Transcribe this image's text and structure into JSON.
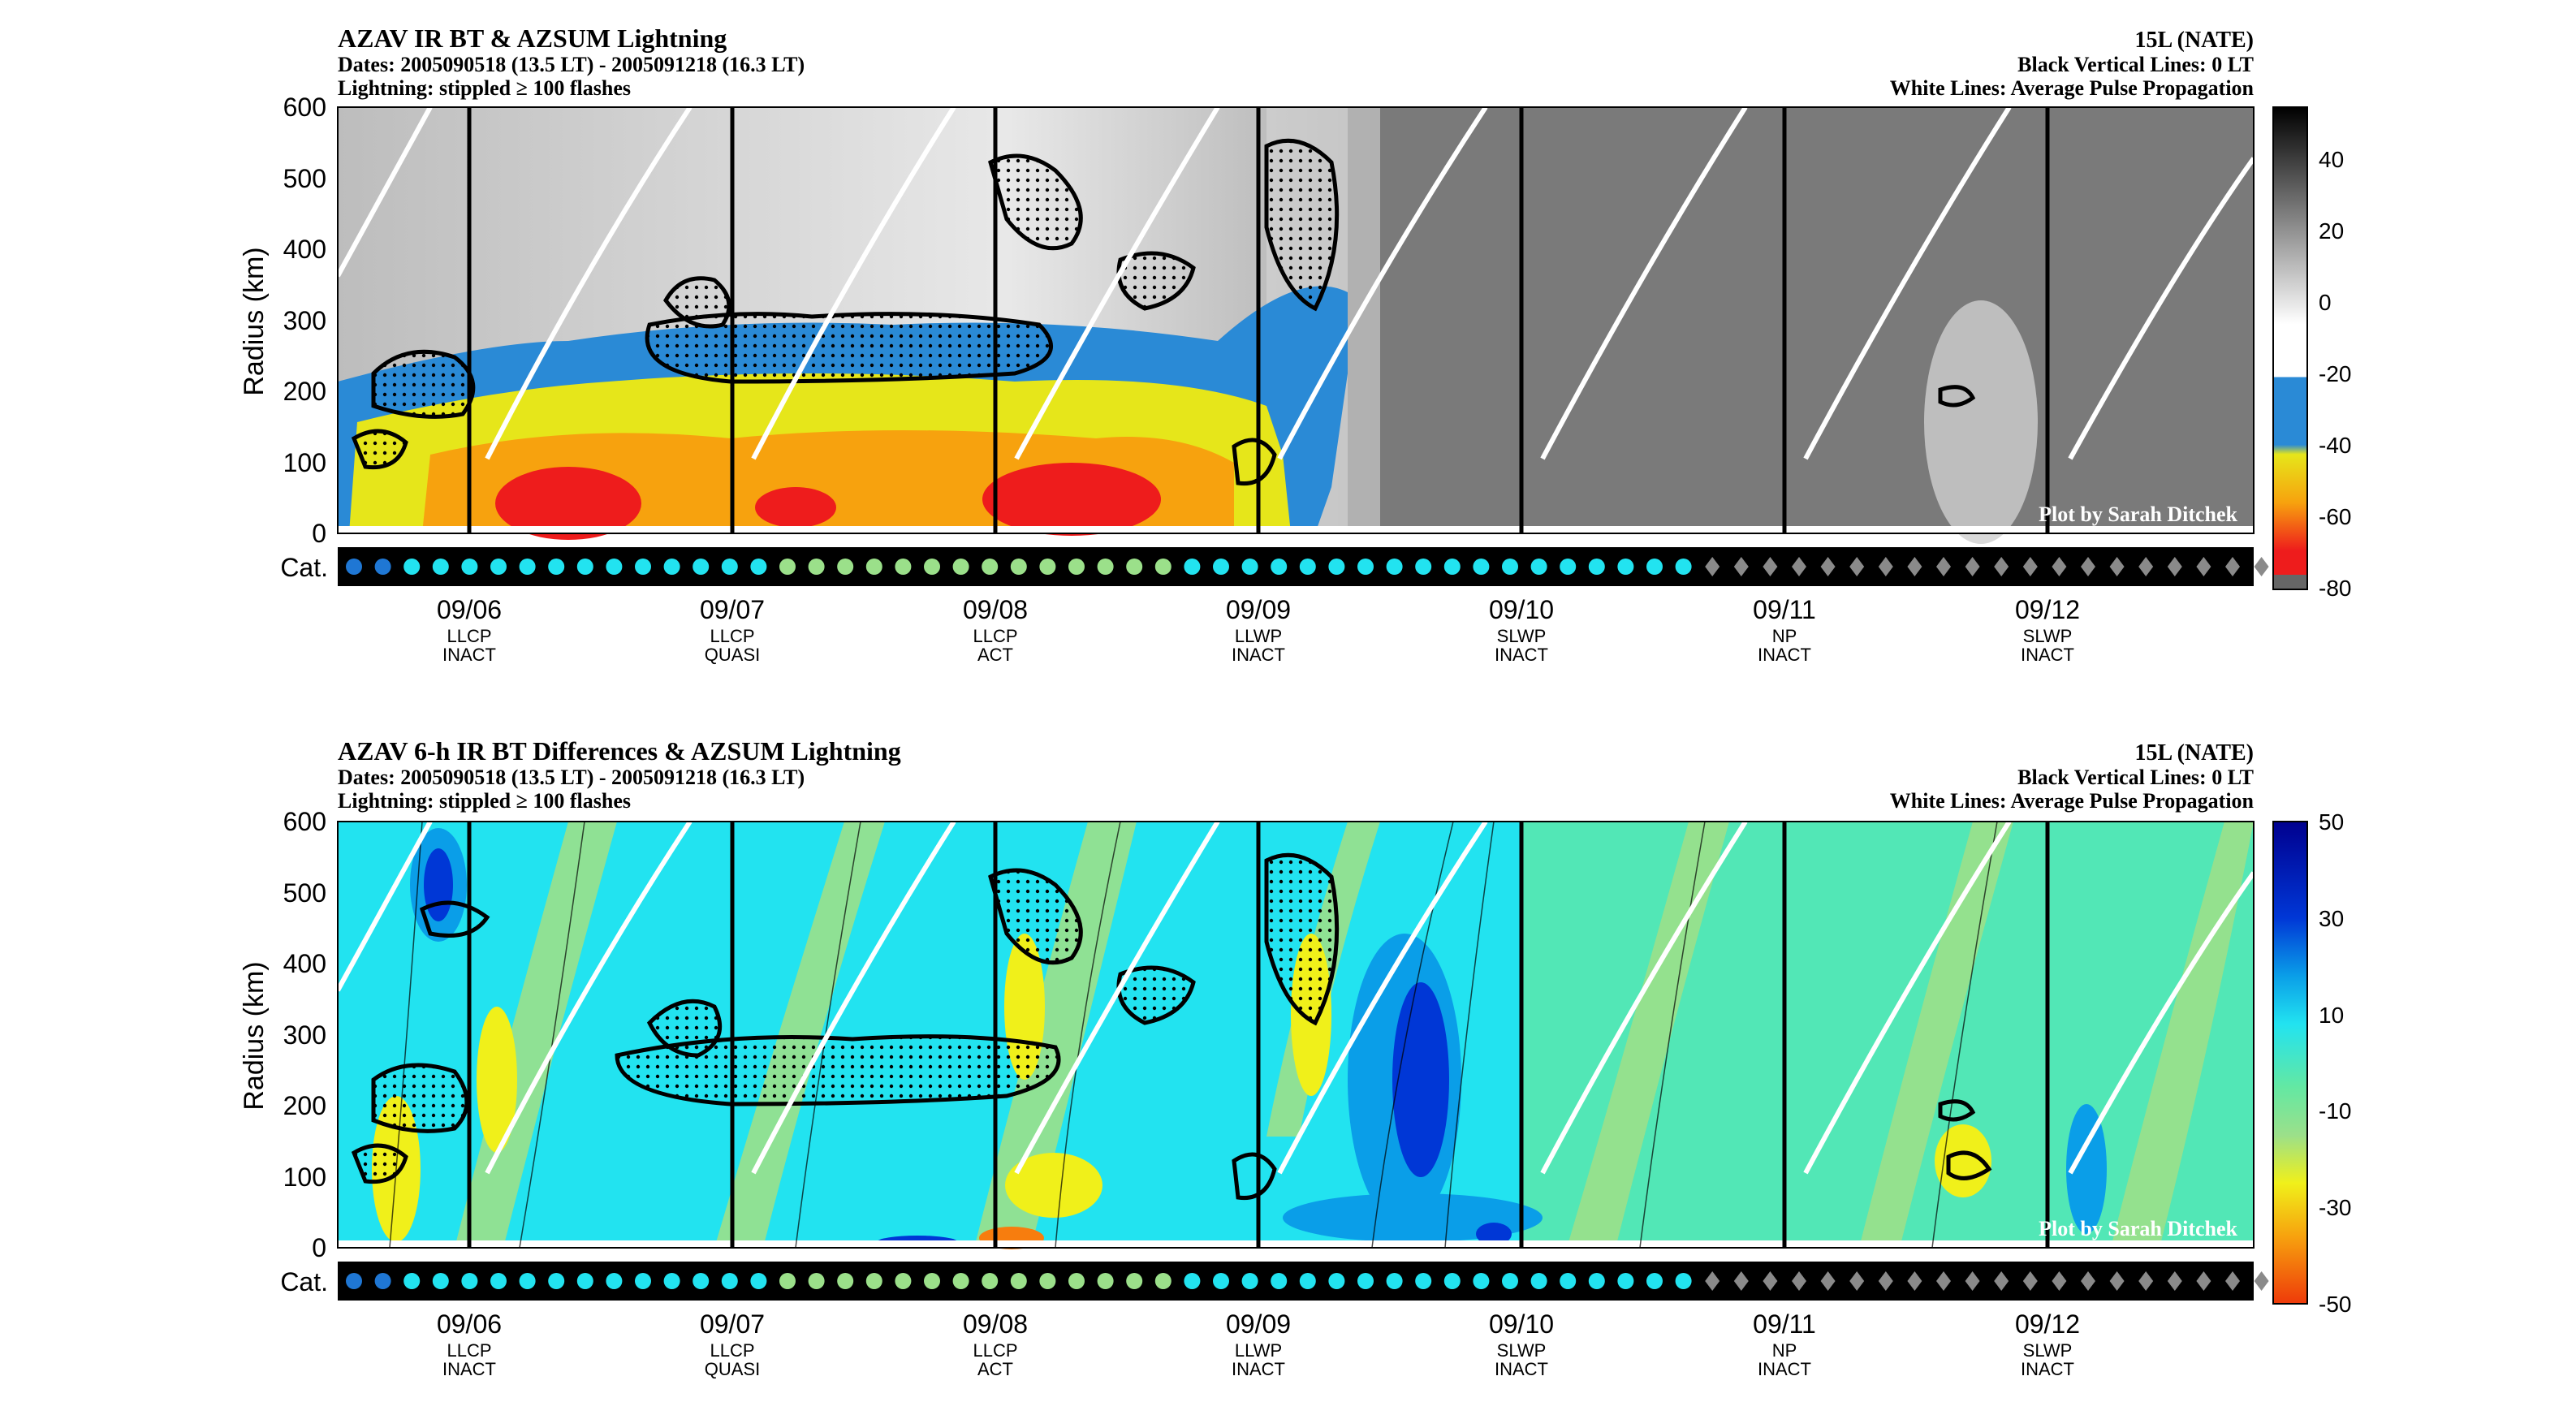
{
  "panels": [
    {
      "title": "AZAV IR BT & AZSUM Lightning",
      "dates": "Dates: 2005090518 (13.5 LT) - 2005091218 (16.3 LT)",
      "lightning": "Lightning: stippled ≥ 100 flashes",
      "storm": "15L (NATE)",
      "black_lines": "Black Vertical Lines: 0 LT",
      "white_lines": "White Lines: Average Pulse Propagation",
      "ylabel": "Radius (km)",
      "credit": "Plot by Sarah Ditchek",
      "colorbar_ticks": [
        "40",
        "20",
        "0",
        "-20",
        "-40",
        "-60",
        "-80"
      ]
    },
    {
      "title": "AZAV 6-h IR BT Differences & AZSUM Lightning",
      "dates": "Dates: 2005090518 (13.5 LT) - 2005091218 (16.3 LT)",
      "lightning": "Lightning: stippled ≥ 100 flashes",
      "storm": "15L (NATE)",
      "black_lines": "Black Vertical Lines: 0 LT",
      "white_lines": "White Lines: Average Pulse Propagation",
      "ylabel": "Radius (km)",
      "credit": "Plot by Sarah Ditchek",
      "colorbar_ticks": [
        "50",
        "30",
        "10",
        "-10",
        "-30",
        "-50"
      ]
    }
  ],
  "cat_label": "Cat.",
  "chart_data": [
    {
      "type": "heatmap",
      "title": "AZAV IR BT & AZSUM Lightning",
      "ylabel": "Radius (km)",
      "ylim": [
        0,
        600
      ],
      "yticks": [
        0,
        100,
        200,
        300,
        400,
        500,
        600
      ],
      "clim": [
        -80,
        50
      ],
      "x_ticks": [
        {
          "date": "09/06",
          "line1": "LLCP",
          "line2": "INACT"
        },
        {
          "date": "09/07",
          "line1": "LLCP",
          "line2": "QUASI"
        },
        {
          "date": "09/08",
          "line1": "LLCP",
          "line2": "ACT"
        },
        {
          "date": "09/09",
          "line1": "LLWP",
          "line2": "INACT"
        },
        {
          "date": "09/10",
          "line1": "SLWP",
          "line2": "INACT"
        },
        {
          "date": "09/11",
          "line1": "NP",
          "line2": "INACT"
        },
        {
          "date": "09/12",
          "line1": "SLWP",
          "line2": "INACT"
        }
      ]
    },
    {
      "type": "heatmap",
      "title": "AZAV 6-h IR BT Differences & AZSUM Lightning",
      "ylabel": "Radius (km)",
      "ylim": [
        0,
        600
      ],
      "yticks": [
        0,
        100,
        200,
        300,
        400,
        500,
        600
      ],
      "clim": [
        -50,
        50
      ],
      "x_ticks": [
        {
          "date": "09/06",
          "line1": "LLCP",
          "line2": "INACT"
        },
        {
          "date": "09/07",
          "line1": "LLCP",
          "line2": "QUASI"
        },
        {
          "date": "09/08",
          "line1": "LLCP",
          "line2": "ACT"
        },
        {
          "date": "09/09",
          "line1": "LLWP",
          "line2": "INACT"
        },
        {
          "date": "09/10",
          "line1": "SLWP",
          "line2": "INACT"
        },
        {
          "date": "09/11",
          "line1": "NP",
          "line2": "INACT"
        },
        {
          "date": "09/12",
          "line1": "SLWP",
          "line2": "INACT"
        }
      ]
    }
  ],
  "category_track": [
    "c",
    "c",
    "t",
    "t",
    "t",
    "t",
    "t",
    "t",
    "t",
    "t",
    "t",
    "t",
    "t",
    "t",
    "t",
    "g",
    "g",
    "g",
    "g",
    "g",
    "g",
    "g",
    "g",
    "g",
    "g",
    "g",
    "g",
    "g",
    "g",
    "t",
    "t",
    "t",
    "t",
    "t",
    "t",
    "t",
    "t",
    "t",
    "t",
    "t",
    "t",
    "t",
    "t",
    "t",
    "t",
    "t",
    "t",
    "d",
    "d",
    "d",
    "d",
    "d",
    "d",
    "d",
    "d",
    "d",
    "d",
    "d",
    "d",
    "d",
    "d",
    "d",
    "d",
    "d",
    "d",
    "d",
    "d"
  ],
  "colors": {
    "cat_c": "#1f77d4",
    "cat_t": "#22e3f0",
    "cat_g": "#9be08a",
    "cat_d": "#8a8a8a"
  }
}
